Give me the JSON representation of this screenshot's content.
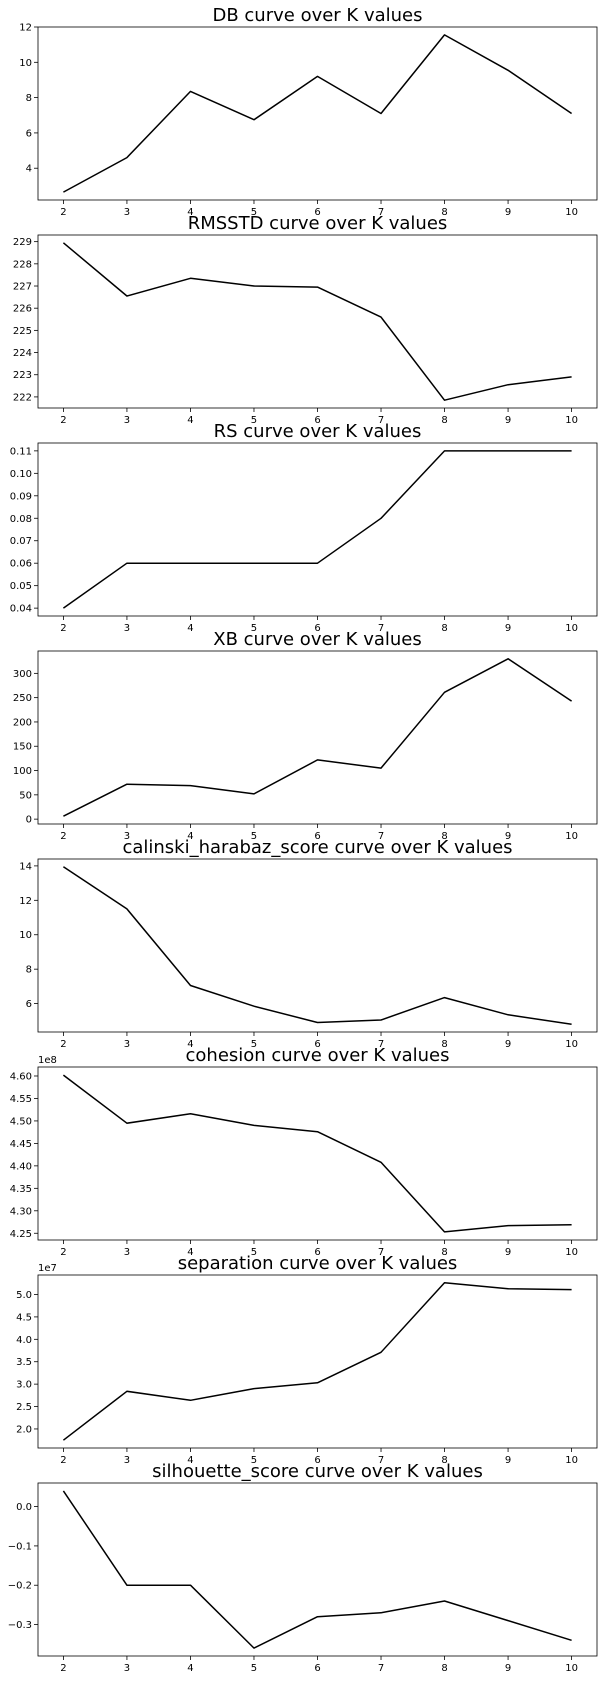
{
  "chart_data": [
    {
      "type": "line",
      "title": "DB curve over K values",
      "x": [
        2,
        3,
        4,
        5,
        6,
        7,
        8,
        9,
        10
      ],
      "y": [
        2.65,
        4.6,
        8.35,
        6.75,
        9.2,
        7.1,
        11.55,
        9.55,
        7.1
      ],
      "xlim": [
        1.6,
        10.4
      ],
      "ylim": [
        2.2,
        12.0
      ],
      "yticks": [
        4,
        6,
        8,
        10,
        12
      ],
      "ytick_labels": [
        "4",
        "6",
        "8",
        "10",
        "12"
      ],
      "offset_label": "",
      "xlabel": "",
      "ylabel": "",
      "grid": false
    },
    {
      "type": "line",
      "title": "RMSSTD curve over K values",
      "x": [
        2,
        3,
        4,
        5,
        6,
        7,
        8,
        9,
        10
      ],
      "y": [
        228.95,
        226.55,
        227.35,
        227.0,
        226.95,
        225.6,
        221.85,
        222.55,
        222.9
      ],
      "xlim": [
        1.6,
        10.4
      ],
      "ylim": [
        221.5,
        229.3
      ],
      "yticks": [
        222,
        223,
        224,
        225,
        226,
        227,
        228,
        229
      ],
      "ytick_labels": [
        "222",
        "223",
        "224",
        "225",
        "226",
        "227",
        "228",
        "229"
      ],
      "offset_label": "",
      "xlabel": "",
      "ylabel": "",
      "grid": false
    },
    {
      "type": "line",
      "title": "RS curve over K values",
      "x": [
        2,
        3,
        4,
        5,
        6,
        7,
        8,
        9,
        10
      ],
      "y": [
        0.04,
        0.06,
        0.06,
        0.06,
        0.06,
        0.08,
        0.11,
        0.11,
        0.11
      ],
      "xlim": [
        1.6,
        10.4
      ],
      "ylim": [
        0.0365,
        0.1135
      ],
      "yticks": [
        0.04,
        0.05,
        0.06,
        0.07,
        0.08,
        0.09,
        0.1,
        0.11
      ],
      "ytick_labels": [
        "0.04",
        "0.05",
        "0.06",
        "0.07",
        "0.08",
        "0.09",
        "0.10",
        "0.11"
      ],
      "offset_label": "",
      "xlabel": "",
      "ylabel": "",
      "grid": false
    },
    {
      "type": "line",
      "title": "XB curve over K values",
      "x": [
        2,
        3,
        4,
        5,
        6,
        7,
        8,
        9,
        10
      ],
      "y": [
        6,
        72,
        69,
        52,
        122,
        105,
        261,
        330,
        243
      ],
      "xlim": [
        1.6,
        10.4
      ],
      "ylim": [
        -10,
        346
      ],
      "yticks": [
        0,
        50,
        100,
        150,
        200,
        250,
        300
      ],
      "ytick_labels": [
        "0",
        "50",
        "100",
        "150",
        "200",
        "250",
        "300"
      ],
      "offset_label": "",
      "xlabel": "",
      "ylabel": "",
      "grid": false
    },
    {
      "type": "line",
      "title": "calinski_harabaz_score curve over K values",
      "x": [
        2,
        3,
        4,
        5,
        6,
        7,
        8,
        9,
        10
      ],
      "y": [
        13.95,
        11.5,
        7.05,
        5.85,
        4.9,
        5.05,
        6.35,
        5.35,
        4.8
      ],
      "xlim": [
        1.6,
        10.4
      ],
      "ylim": [
        4.35,
        14.4
      ],
      "yticks": [
        6,
        8,
        10,
        12,
        14
      ],
      "ytick_labels": [
        "6",
        "8",
        "10",
        "12",
        "14"
      ],
      "offset_label": "",
      "xlabel": "",
      "ylabel": "",
      "grid": false
    },
    {
      "type": "line",
      "title": "cohesion curve over K values",
      "x": [
        2,
        3,
        4,
        5,
        6,
        7,
        8,
        9,
        10
      ],
      "y": [
        4.602,
        4.495,
        4.516,
        4.49,
        4.476,
        4.408,
        4.253,
        4.267,
        4.269
      ],
      "xlim": [
        1.6,
        10.4
      ],
      "ylim": [
        4.235,
        4.62
      ],
      "yticks": [
        4.25,
        4.3,
        4.35,
        4.4,
        4.45,
        4.5,
        4.55,
        4.6
      ],
      "ytick_labels": [
        "4.25",
        "4.30",
        "4.35",
        "4.40",
        "4.45",
        "4.50",
        "4.55",
        "4.60"
      ],
      "offset_label": "1e8",
      "xlabel": "",
      "ylabel": "",
      "grid": false
    },
    {
      "type": "line",
      "title": "separation curve over K values",
      "x": [
        2,
        3,
        4,
        5,
        6,
        7,
        8,
        9,
        10
      ],
      "y": [
        1.75,
        2.84,
        2.64,
        2.9,
        3.03,
        3.71,
        5.26,
        5.13,
        5.11
      ],
      "xlim": [
        1.6,
        10.4
      ],
      "ylim": [
        1.575,
        5.435
      ],
      "yticks": [
        2.0,
        2.5,
        3.0,
        3.5,
        4.0,
        4.5,
        5.0
      ],
      "ytick_labels": [
        "2.0",
        "2.5",
        "3.0",
        "3.5",
        "4.0",
        "4.5",
        "5.0"
      ],
      "offset_label": "1e7",
      "xlabel": "",
      "ylabel": "",
      "grid": false
    },
    {
      "type": "line",
      "title": "silhouette_score curve over K values",
      "x": [
        2,
        3,
        4,
        5,
        6,
        7,
        8,
        9,
        10
      ],
      "y": [
        0.04,
        -0.2,
        -0.2,
        -0.36,
        -0.28,
        -0.27,
        -0.24,
        -0.29,
        -0.34
      ],
      "xlim": [
        1.6,
        10.4
      ],
      "ylim": [
        -0.38,
        0.06
      ],
      "yticks": [
        0.0,
        -0.1,
        -0.2,
        -0.3
      ],
      "ytick_labels": [
        "0.0",
        "−0.1",
        "−0.2",
        "−0.3"
      ],
      "offset_label": "",
      "xlabel": "",
      "ylabel": "",
      "grid": false
    }
  ]
}
